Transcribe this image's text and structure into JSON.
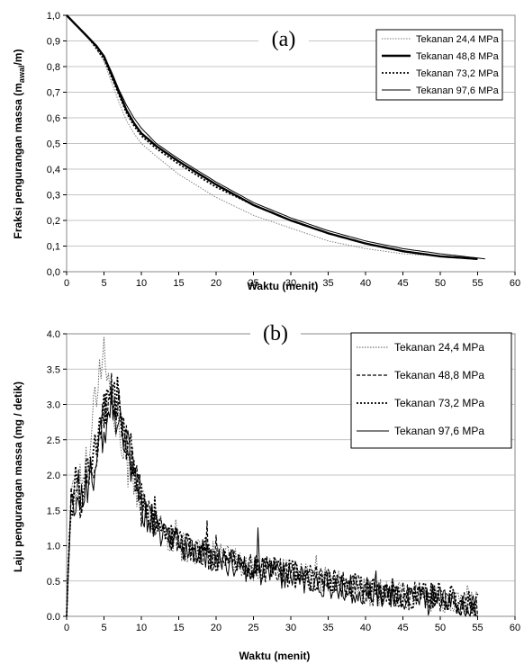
{
  "chart_data": [
    {
      "panel": "(a)",
      "type": "line",
      "title": "(a)",
      "xlabel": "Waktu (menit)",
      "ylabel": "Fraksi  pengurangan massa (m<sub>awal</sub>/m)",
      "ylabel_main": "Fraksi  pengurangan massa (m",
      "ylabel_sub": "awal",
      "ylabel_tail": "/m)",
      "xlim": [
        0,
        60
      ],
      "ylim": [
        0,
        1.0
      ],
      "xticks": [
        "0",
        "5",
        "10",
        "15",
        "20",
        "25",
        "30",
        "35",
        "40",
        "45",
        "50",
        "55",
        "60"
      ],
      "yticks": [
        "0,0",
        "0,1",
        "0,2",
        "0,3",
        "0,4",
        "0,5",
        "0,6",
        "0,7",
        "0,8",
        "0,9",
        "1,0"
      ],
      "grid": "horizontal",
      "legend_position": "top-right",
      "series": [
        {
          "name": "Tekanan 24,4 MPa",
          "style": "dotted-thin",
          "color": "#777777",
          "x": [
            0,
            1,
            2,
            3,
            4,
            5,
            6,
            7,
            8,
            9,
            10,
            12,
            15,
            20,
            25,
            30,
            35,
            40,
            45,
            50,
            55
          ],
          "y": [
            1.0,
            0.97,
            0.94,
            0.91,
            0.87,
            0.82,
            0.74,
            0.66,
            0.59,
            0.54,
            0.5,
            0.45,
            0.38,
            0.29,
            0.22,
            0.17,
            0.12,
            0.09,
            0.07,
            0.06,
            0.05
          ]
        },
        {
          "name": "Tekanan 48,8 MPa",
          "style": "solid-thick",
          "color": "#000000",
          "x": [
            0,
            1,
            2,
            3,
            4,
            5,
            6,
            7,
            8,
            9,
            10,
            12,
            15,
            20,
            25,
            30,
            35,
            40,
            45,
            50,
            55
          ],
          "y": [
            1.0,
            0.97,
            0.94,
            0.91,
            0.88,
            0.84,
            0.77,
            0.7,
            0.63,
            0.58,
            0.54,
            0.49,
            0.43,
            0.34,
            0.26,
            0.2,
            0.15,
            0.11,
            0.08,
            0.06,
            0.05
          ]
        },
        {
          "name": "Tekanan 73,2 MPa",
          "style": "dotted-thick",
          "color": "#000000",
          "x": [
            0,
            1,
            2,
            3,
            4,
            5,
            6,
            7,
            8,
            9,
            10,
            12,
            15,
            20,
            25,
            30,
            35,
            40,
            45,
            50,
            55
          ],
          "y": [
            1.0,
            0.97,
            0.94,
            0.91,
            0.87,
            0.83,
            0.76,
            0.69,
            0.62,
            0.57,
            0.53,
            0.48,
            0.42,
            0.33,
            0.26,
            0.2,
            0.15,
            0.11,
            0.08,
            0.06,
            0.05
          ]
        },
        {
          "name": "Tekanan 97,6 MPa",
          "style": "solid-thin",
          "color": "#000000",
          "x": [
            0,
            1,
            2,
            3,
            4,
            5,
            6,
            7,
            8,
            9,
            10,
            12,
            15,
            20,
            25,
            30,
            35,
            40,
            45,
            50,
            56
          ],
          "y": [
            1.0,
            0.97,
            0.94,
            0.91,
            0.88,
            0.84,
            0.78,
            0.71,
            0.65,
            0.6,
            0.56,
            0.5,
            0.44,
            0.35,
            0.27,
            0.21,
            0.16,
            0.12,
            0.09,
            0.07,
            0.05
          ]
        }
      ]
    },
    {
      "panel": "(b)",
      "type": "line",
      "title": "(b)",
      "xlabel": "Waktu (menit)",
      "ylabel": "Laju  pengurangan massa (mg / detik)",
      "xlim": [
        0,
        60
      ],
      "ylim": [
        0,
        4.0
      ],
      "xticks": [
        "0",
        "5",
        "10",
        "15",
        "20",
        "25",
        "30",
        "35",
        "40",
        "45",
        "50",
        "55",
        "60"
      ],
      "yticks": [
        "0.0",
        "0.5",
        "1.0",
        "1.5",
        "2.0",
        "2.5",
        "3.0",
        "3.5",
        "4.0"
      ],
      "grid": "horizontal",
      "legend_position": "top-right",
      "series": [
        {
          "name": "Tekanan 24,4 MPa",
          "style": "dotted-thin",
          "color": "#555555",
          "x": [
            0,
            0.5,
            1,
            2,
            3,
            3.5,
            4,
            4.5,
            5,
            5.5,
            6,
            7,
            8,
            9,
            10,
            12,
            15,
            20,
            25,
            30,
            35,
            40,
            45,
            50,
            55
          ],
          "y": [
            0,
            1.7,
            1.8,
            1.9,
            2.4,
            2.9,
            3.2,
            3.6,
            3.8,
            3.3,
            3.1,
            2.6,
            2.2,
            2.0,
            1.6,
            1.3,
            1.0,
            0.85,
            0.7,
            0.6,
            0.5,
            0.35,
            0.3,
            0.25,
            0.15
          ]
        },
        {
          "name": "Tekanan 48,8 MPa",
          "style": "dashed",
          "color": "#000000",
          "x": [
            0,
            0.5,
            1,
            2,
            3,
            4,
            5,
            6,
            7,
            8,
            9,
            10,
            12,
            15,
            20,
            25,
            30,
            35,
            40,
            45,
            50,
            55
          ],
          "y": [
            0,
            1.5,
            1.8,
            1.7,
            2.0,
            2.3,
            2.8,
            3.2,
            2.9,
            2.5,
            2.0,
            1.6,
            1.3,
            1.0,
            0.8,
            0.7,
            0.6,
            0.5,
            0.35,
            0.3,
            0.25,
            0.15
          ]
        },
        {
          "name": "Tekanan 73,2 MPa",
          "style": "dotted-thick",
          "color": "#000000",
          "x": [
            0,
            0.5,
            1,
            2,
            3,
            4,
            5,
            6,
            7,
            8,
            9,
            10,
            12,
            15,
            20,
            25,
            30,
            35,
            40,
            45,
            50,
            55
          ],
          "y": [
            0,
            1.6,
            1.9,
            1.8,
            2.1,
            2.4,
            2.9,
            3.3,
            3.0,
            2.5,
            2.1,
            1.6,
            1.3,
            1.05,
            0.85,
            0.7,
            0.6,
            0.5,
            0.4,
            0.3,
            0.3,
            0.15
          ]
        },
        {
          "name": "Tekanan 97,6 MPa",
          "style": "solid-thin",
          "color": "#000000",
          "x": [
            0,
            0.5,
            1,
            2,
            3,
            4,
            5,
            6,
            7,
            8,
            9,
            10,
            12,
            15,
            20,
            25,
            30,
            35,
            40,
            45,
            50,
            55
          ],
          "y": [
            0,
            1.5,
            1.7,
            1.6,
            1.9,
            2.2,
            2.7,
            3.1,
            2.8,
            2.4,
            2.0,
            1.5,
            1.25,
            1.0,
            0.8,
            0.65,
            0.55,
            0.45,
            0.35,
            0.25,
            0.2,
            0.1
          ]
        }
      ]
    }
  ]
}
